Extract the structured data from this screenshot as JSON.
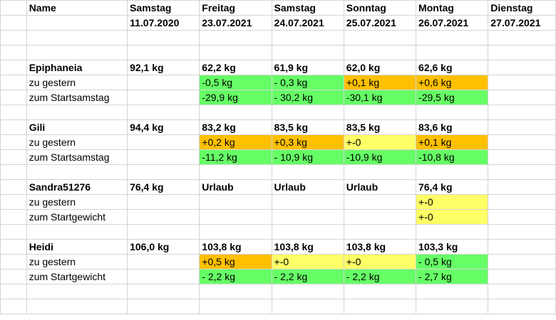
{
  "colors": {
    "green": "#66ff66",
    "orange": "#ffc000",
    "yellow": "#ffff66"
  },
  "header": {
    "name_label": "Name",
    "days": [
      {
        "day": "Samstag",
        "date": "11.07.2020"
      },
      {
        "day": "Freitag",
        "date": "23.07.2021"
      },
      {
        "day": "Samstag",
        "date": "24.07.2021"
      },
      {
        "day": "Sonntag",
        "date": "25.07.2021"
      },
      {
        "day": "Montag",
        "date": "26.07.2021"
      },
      {
        "day": "Dienstag",
        "date": "27.07.2021"
      }
    ]
  },
  "people": [
    {
      "name": "Epiphaneia",
      "values": [
        "92,1 kg",
        "62,2 kg",
        "61,9 kg",
        "62,0 kg",
        "62,6 kg",
        ""
      ],
      "rows": [
        {
          "label": "zu gestern",
          "values": [
            "",
            "-0,5 kg",
            "- 0,3 kg",
            "+0,1 kg",
            "+0,6 kg",
            ""
          ]
        },
        {
          "label": "zum Startsamstag",
          "values": [
            "",
            "-29,9 kg",
            "- 30,2 kg",
            "-30,1 kg",
            "-29,5 kg",
            ""
          ]
        }
      ]
    },
    {
      "name": "Gili",
      "values": [
        "94,4 kg",
        "83,2 kg",
        "83,5 kg",
        "83,5 kg",
        "83,6 kg",
        ""
      ],
      "rows": [
        {
          "label": "zu gestern",
          "values": [
            "",
            "+0,2 kg",
            "+0,3 kg",
            "+-0",
            "+0,1 kg",
            ""
          ]
        },
        {
          "label": "zum Startsamstag",
          "values": [
            "",
            "-11,2 kg",
            "- 10,9 kg",
            "-10,9 kg",
            "-10,8 kg",
            ""
          ]
        }
      ]
    },
    {
      "name": "Sandra51276",
      "values": [
        "76,4 kg",
        "Urlaub",
        "Urlaub",
        "Urlaub",
        "76,4 kg",
        ""
      ],
      "rows": [
        {
          "label": "zu gestern",
          "values": [
            "",
            "",
            "",
            "",
            "+-0",
            ""
          ]
        },
        {
          "label": "zum Startgewicht",
          "values": [
            "",
            "",
            "",
            "",
            "+-0",
            ""
          ]
        }
      ]
    },
    {
      "name": "Heidi",
      "values": [
        "106,0 kg",
        "103,8 kg",
        "103,8 kg",
        "103,8 kg",
        "103,3 kg",
        ""
      ],
      "rows": [
        {
          "label": "zu gestern",
          "values": [
            "",
            "+0,5 kg",
            "+-0",
            "+-0",
            "- 0,5 kg",
            ""
          ]
        },
        {
          "label": "zum Startgewicht",
          "values": [
            "",
            "-  2,2 kg",
            "-  2,2 kg",
            "- 2,2 kg",
            "- 2,7 kg",
            ""
          ]
        }
      ]
    }
  ]
}
